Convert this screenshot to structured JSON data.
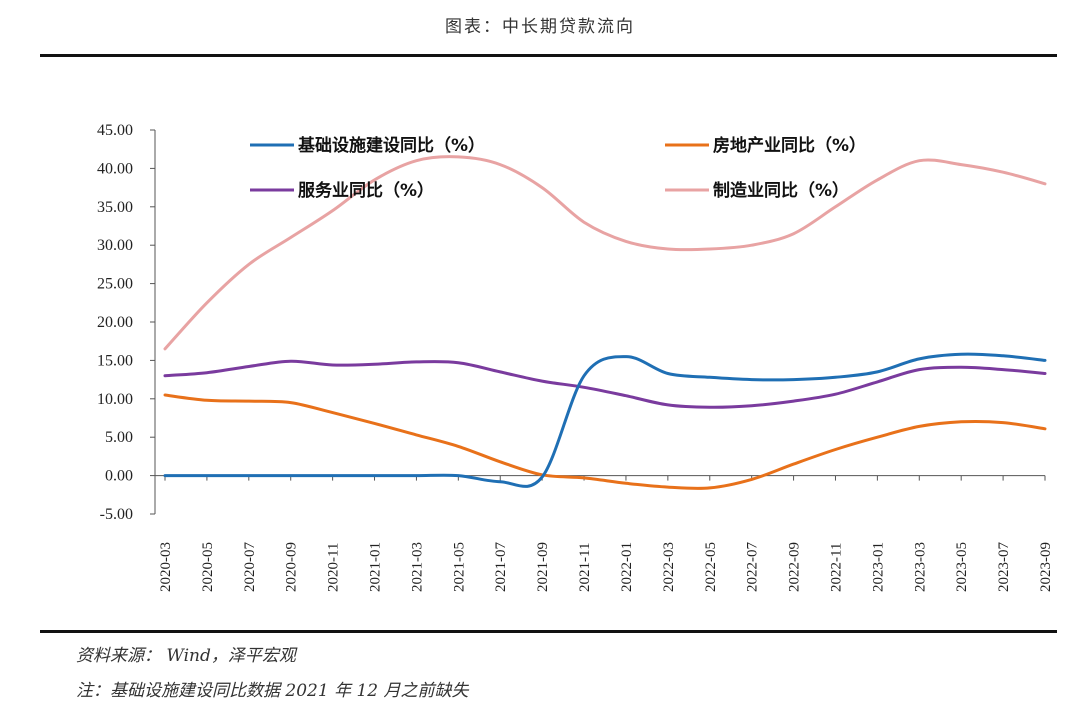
{
  "title": "图表：中长期贷款流向",
  "source": "资料来源：  Wind，泽平宏观",
  "footnote": "注：基础设施建设同比数据 2021 年 12 月之前缺失",
  "chart_data": {
    "type": "line",
    "title": "",
    "xlabel": "",
    "ylabel": "",
    "ylim": [
      -5,
      45
    ],
    "yticks": [
      "45.00",
      "40.00",
      "35.00",
      "30.00",
      "25.00",
      "20.00",
      "15.00",
      "10.00",
      "5.00",
      "0.00",
      "-5.00"
    ],
    "x": [
      "2020-03",
      "2020-05",
      "2020-07",
      "2020-09",
      "2020-11",
      "2021-01",
      "2021-03",
      "2021-05",
      "2021-07",
      "2021-09",
      "2021-11",
      "2022-01",
      "2022-03",
      "2022-05",
      "2022-07",
      "2022-09",
      "2022-11",
      "2023-01",
      "2023-03",
      "2023-05",
      "2023-07",
      "2023-09"
    ],
    "legend": "top",
    "series": [
      {
        "name": "基础设施建设同比（%）",
        "color": "#1f6fb4",
        "values": [
          0,
          0,
          0,
          0,
          0,
          0,
          0,
          0,
          -0.8,
          -0.2,
          13.0,
          15.5,
          13.3,
          12.8,
          12.5,
          12.5,
          12.8,
          13.5,
          15.2,
          15.8,
          15.6,
          15.0
        ]
      },
      {
        "name": "房地产业同比（%）",
        "color": "#e8711a",
        "values": [
          10.5,
          9.8,
          9.7,
          9.5,
          8.2,
          6.8,
          5.3,
          3.8,
          1.8,
          0.1,
          -0.3,
          -1.0,
          -1.5,
          -1.6,
          -0.5,
          1.5,
          3.4,
          5.0,
          6.4,
          7.0,
          6.9,
          6.1
        ]
      },
      {
        "name": "服务业同比（%）",
        "color": "#7a3b9e",
        "values": [
          13.0,
          13.4,
          14.2,
          14.9,
          14.4,
          14.5,
          14.8,
          14.7,
          13.5,
          12.3,
          11.5,
          10.4,
          9.2,
          8.9,
          9.1,
          9.7,
          10.6,
          12.2,
          13.8,
          14.1,
          13.8,
          13.3
        ]
      },
      {
        "name": "制造业同比（%）",
        "color": "#e8a3a3",
        "values": [
          16.5,
          22.5,
          27.5,
          31.0,
          34.5,
          38.5,
          41.0,
          41.5,
          40.5,
          37.5,
          33.0,
          30.5,
          29.5,
          29.5,
          30.0,
          31.5,
          35.0,
          38.5,
          41.0,
          40.5,
          39.5,
          38.0
        ]
      }
    ]
  }
}
